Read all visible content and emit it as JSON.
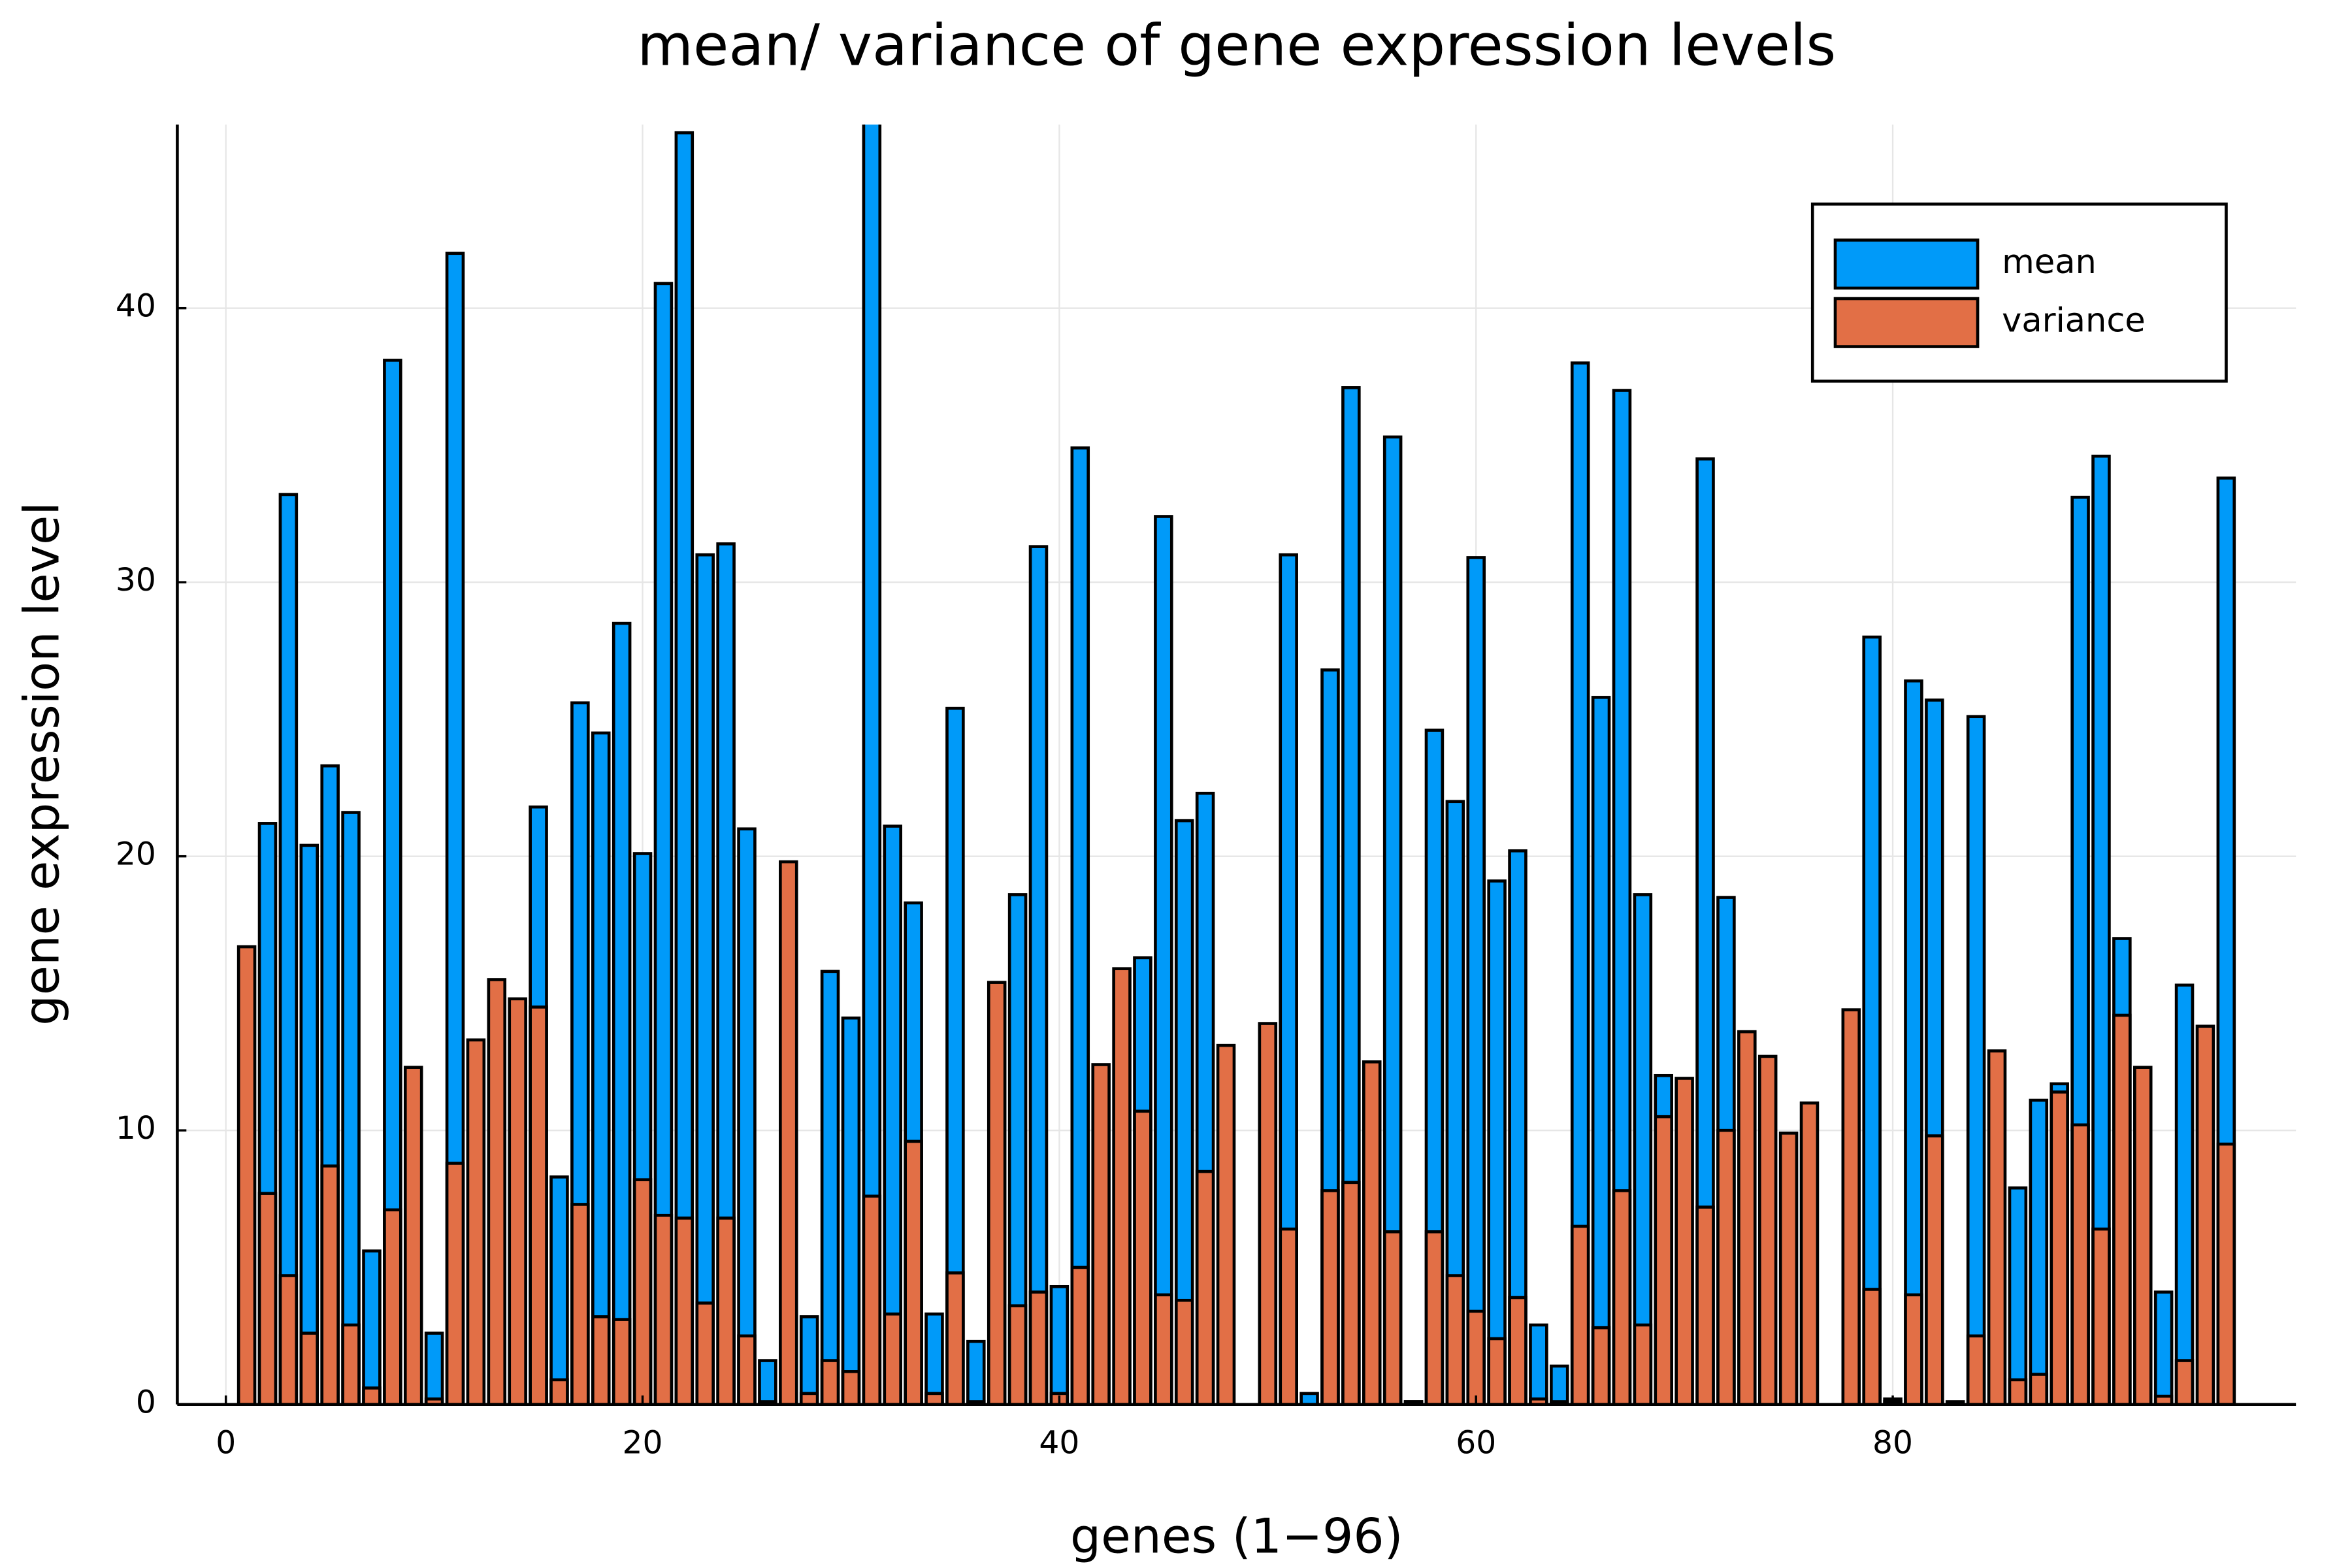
{
  "chart_data": {
    "type": "bar",
    "title": "mean/ variance of gene expression levels",
    "xlabel": "genes (1−96)",
    "ylabel": "gene expression level",
    "x": [
      1,
      2,
      3,
      4,
      5,
      6,
      7,
      8,
      9,
      10,
      11,
      12,
      13,
      14,
      15,
      16,
      17,
      18,
      19,
      20,
      21,
      22,
      23,
      24,
      25,
      26,
      27,
      28,
      29,
      30,
      31,
      32,
      33,
      34,
      35,
      36,
      37,
      38,
      39,
      40,
      41,
      42,
      43,
      44,
      45,
      46,
      47,
      48,
      49,
      50,
      51,
      52,
      53,
      54,
      55,
      56,
      57,
      58,
      59,
      60,
      61,
      62,
      63,
      64,
      65,
      66,
      67,
      68,
      69,
      70,
      71,
      72,
      73,
      74,
      75,
      76,
      77,
      78,
      79,
      80,
      81,
      82,
      83,
      84,
      85,
      86,
      87,
      88,
      89,
      90,
      91,
      92,
      93,
      94,
      95,
      96
    ],
    "series": [
      {
        "name": "mean",
        "color": "#009af9",
        "values": [
          0,
          21.2,
          33.2,
          20.4,
          23.3,
          21.6,
          5.6,
          38.1,
          0,
          2.6,
          42.0,
          0,
          0,
          0,
          21.8,
          8.3,
          25.6,
          24.5,
          28.5,
          20.1,
          40.9,
          46.4,
          31.0,
          31.4,
          21.0,
          1.6,
          0,
          3.2,
          15.8,
          14.1,
          47,
          21.1,
          18.3,
          3.3,
          25.4,
          2.3,
          0,
          18.6,
          31.3,
          4.3,
          34.9,
          0,
          0,
          16.3,
          32.4,
          21.3,
          22.3,
          0,
          0,
          0,
          31.0,
          0.4,
          26.8,
          37.1,
          0,
          35.3,
          0.1,
          24.6,
          22.0,
          30.9,
          19.1,
          20.2,
          2.9,
          1.4,
          38.0,
          25.8,
          37.0,
          18.6,
          12.0,
          0,
          34.5,
          18.5,
          0,
          0,
          0,
          0,
          0,
          0,
          28.0,
          0.2,
          26.4,
          25.7,
          0.1,
          25.1,
          0,
          7.9,
          11.1,
          11.7,
          33.1,
          34.6,
          17.0,
          0,
          4.1,
          15.3,
          0,
          33.8
        ]
      },
      {
        "name": "variance",
        "color": "#e26f46",
        "values": [
          16.7,
          7.7,
          4.7,
          2.6,
          8.7,
          2.9,
          0.6,
          7.1,
          12.3,
          0.2,
          8.8,
          13.3,
          15.5,
          14.8,
          14.5,
          0.9,
          7.3,
          3.2,
          3.1,
          8.2,
          6.9,
          6.8,
          3.7,
          6.8,
          2.5,
          0.1,
          19.8,
          0.4,
          1.6,
          1.2,
          7.6,
          3.3,
          9.6,
          0.4,
          4.8,
          0.1,
          15.4,
          3.6,
          4.1,
          0.4,
          5.0,
          12.4,
          15.9,
          10.7,
          4.0,
          3.8,
          8.5,
          13.1,
          0,
          13.9,
          6.4,
          0,
          7.8,
          8.1,
          12.5,
          6.3,
          0.1,
          6.3,
          4.7,
          3.4,
          2.4,
          3.9,
          0.2,
          0.1,
          6.5,
          2.8,
          7.8,
          2.9,
          10.5,
          11.9,
          7.2,
          10.0,
          13.6,
          12.7,
          9.9,
          11.0,
          0,
          14.4,
          4.2,
          0.1,
          4.0,
          9.8,
          0,
          2.5,
          12.9,
          0.9,
          1.1,
          11.4,
          10.2,
          6.4,
          14.2,
          12.3,
          0.3,
          1.6,
          13.8,
          9.5
        ]
      }
    ],
    "xlim": [
      -2.33,
      99.35
    ],
    "ylim": [
      0,
      46.7
    ],
    "xticks": [
      0,
      20,
      40,
      60,
      80
    ],
    "yticks": [
      0,
      10,
      20,
      30,
      40
    ],
    "grid": true,
    "legend": "top-right"
  }
}
